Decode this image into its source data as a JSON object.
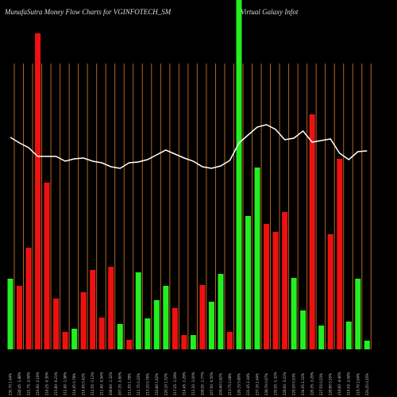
{
  "chart_data": {
    "type": "bar",
    "title": "MunafaSutra  Money Flow  Charts for VGINFOTECH_SM",
    "subtitle": "Virtual Galaxy Infot",
    "categories": [
      "230.70 1.64%",
      "226.45 -1.88%",
      "221.75 -2.08%",
      "216.90 -2.19%",
      "216.25 -0.30%",
      "215.80 -0.21%",
      "212.40 -1.58%",
      "214.05 0.78%",
      "214.95 0.42%",
      "212.55 -1.12%",
      "211.40 -0.54%",
      "208.60 -1.32%",
      "207.35 -0.60%",
      "211.05 1.78%",
      "211.75 0.33%",
      "213.35 0.76%",
      "216.80 1.62%",
      "220.10 1.52%",
      "217.25 -1.29%",
      "214.45 -1.29%",
      "212.30 -1.00%",
      "208.55 -1.77%",
      "207.50 -0.50%",
      "209.40 0.92%",
      "213.75 2.08%",
      "226.15 5.80%",
      "231.45 2.34%",
      "237.10 2.44%",
      "238.70 0.67%",
      "235.55 -1.32%",
      "228.00 -3.21%",
      "229.20 0.53%",
      "234.05 2.12%",
      "226.35 -3.29%",
      "227.55 0.53%",
      "228.80 0.55%",
      "218.60 -4.46%",
      "214.05 -2.08%",
      "219.70 2.64%",
      "220.25 0.25%"
    ],
    "ylim": [
      0,
      440
    ],
    "series": [
      {
        "name": "Money Flow",
        "values": [
          89,
          80,
          128,
          398,
          210,
          64,
          22,
          26,
          72,
          100,
          40,
          104,
          32,
          12,
          97,
          39,
          62,
          80,
          52,
          18,
          18,
          81,
          60,
          95,
          22,
          440,
          168,
          229,
          158,
          148,
          173,
          90,
          49,
          296,
          30,
          145,
          240,
          35,
          89,
          11
        ],
        "colors": [
          "#22ee22",
          "#ee1111",
          "#ee1111",
          "#ee1111",
          "#ee1111",
          "#ee1111",
          "#ee1111",
          "#22ee22",
          "#ee1111",
          "#ee1111",
          "#ee1111",
          "#ee1111",
          "#22ee22",
          "#ee1111",
          "#22ee22",
          "#22ee22",
          "#22ee22",
          "#22ee22",
          "#ee1111",
          "#ee1111",
          "#22ee22",
          "#ee1111",
          "#22ee22",
          "#22ee22",
          "#ee1111",
          "#22ee22",
          "#22ee22",
          "#22ee22",
          "#ee1111",
          "#ee1111",
          "#ee1111",
          "#22ee22",
          "#22ee22",
          "#ee1111",
          "#22ee22",
          "#ee1111",
          "#ee1111",
          "#22ee22",
          "#22ee22",
          "#22ee22"
        ]
      },
      {
        "name": "Price",
        "color": "#ffffff",
        "values": [
          267,
          260,
          254,
          243,
          243,
          243,
          237,
          240,
          241,
          237,
          235,
          230,
          228,
          235,
          236,
          239,
          245,
          251,
          246,
          241,
          237,
          230,
          228,
          231,
          238,
          260,
          270,
          280,
          283,
          277,
          264,
          266,
          275,
          261,
          263,
          265,
          247,
          239,
          249,
          250
        ]
      }
    ],
    "grid_color": "#b5651d"
  }
}
